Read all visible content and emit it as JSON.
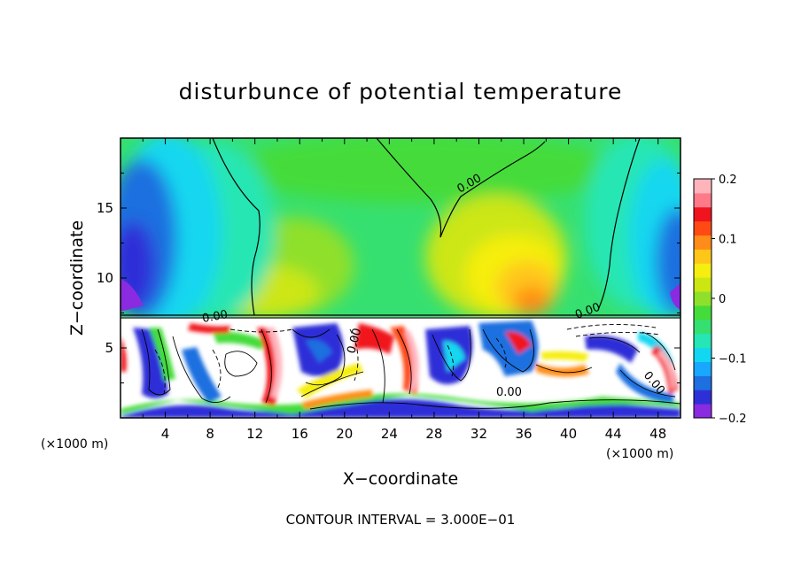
{
  "chart_data": {
    "type": "heatmap",
    "title": "disturbunce of potential temperature",
    "xlabel": "X−coordinate",
    "ylabel": "Z−coordinate",
    "x_unit": "(×1000 m)",
    "x_unit_right": "(×1000 m)",
    "xlim": [
      0,
      50
    ],
    "ylim": [
      0,
      20
    ],
    "x_ticks": [
      4,
      8,
      12,
      16,
      20,
      24,
      28,
      32,
      36,
      40,
      44,
      48
    ],
    "x_tick_labels": [
      "4",
      "8",
      "12",
      "16",
      "20",
      "24",
      "28",
      "32",
      "36",
      "40",
      "44",
      "48"
    ],
    "y_ticks": [
      5,
      10,
      15
    ],
    "y_tick_labels": [
      "5",
      "10",
      "15"
    ],
    "colorbar": {
      "range": [
        -0.2,
        0.2
      ],
      "ticks": [
        0.2,
        0.1,
        0,
        -0.1,
        -0.2
      ],
      "tick_labels": [
        "0.2",
        "0.1",
        "0",
        "−0.1",
        "−0.2"
      ],
      "colors": [
        "#8a2be2",
        "#2f2fd8",
        "#1e6fe0",
        "#18a8ff",
        "#13d7f0",
        "#25e6b4",
        "#36e070",
        "#44dc3a",
        "#8fe02a",
        "#cce614",
        "#f6ee10",
        "#ffc61a",
        "#ff8c18",
        "#ff4a14",
        "#f0141e",
        "#ff7a88",
        "#ffb4bc"
      ]
    },
    "contour_labels": [
      "0.00",
      "0.00",
      "0.00",
      "0.00",
      "0.00",
      "0.00"
    ],
    "footnote": "CONTOUR INTERVAL = 3.000E−01"
  }
}
